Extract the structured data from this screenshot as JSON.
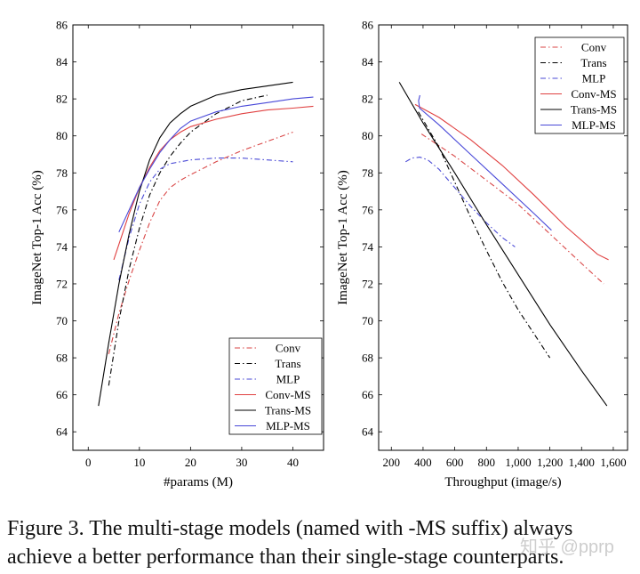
{
  "chart_data": [
    {
      "type": "line",
      "xlabel": "#params (M)",
      "ylabel": "ImageNet Top-1 Acc (%)",
      "xlim": [
        -3,
        46
      ],
      "ylim": [
        63,
        86
      ],
      "xticks": [
        0,
        10,
        20,
        30,
        40
      ],
      "yticks": [
        64,
        66,
        68,
        70,
        72,
        74,
        76,
        78,
        80,
        82,
        84,
        86
      ],
      "legend_position": "bottom-right",
      "series": [
        {
          "name": "Conv",
          "color": "#d94545",
          "dash": "6 3 1.5 3",
          "x": [
            4,
            6,
            8,
            10,
            12,
            14,
            16,
            18,
            20,
            25,
            30,
            35,
            40
          ],
          "y": [
            68.2,
            70.4,
            72.2,
            73.8,
            75.3,
            76.5,
            77.2,
            77.6,
            77.9,
            78.6,
            79.2,
            79.7,
            80.2
          ]
        },
        {
          "name": "Trans",
          "color": "#000000",
          "dash": "6 3 1.5 3",
          "x": [
            4,
            6,
            8,
            10,
            12,
            14,
            16,
            18,
            20,
            25,
            30,
            35
          ],
          "y": [
            66.5,
            70.0,
            72.8,
            75.0,
            76.8,
            78.0,
            78.9,
            79.6,
            80.2,
            81.2,
            81.9,
            82.2
          ]
        },
        {
          "name": "MLP",
          "color": "#4a4ad6",
          "dash": "6 3 1.5 3",
          "x": [
            6,
            8,
            10,
            12,
            14,
            16,
            18,
            20,
            25,
            30,
            35,
            40
          ],
          "y": [
            72.2,
            74.5,
            76.3,
            77.5,
            78.2,
            78.5,
            78.6,
            78.7,
            78.8,
            78.8,
            78.7,
            78.6
          ]
        },
        {
          "name": "Conv-MS",
          "color": "#e04040",
          "dash": "",
          "x": [
            5,
            8,
            10,
            12,
            14,
            16,
            18,
            20,
            25,
            30,
            35,
            40,
            44
          ],
          "y": [
            73.3,
            75.8,
            77.2,
            78.3,
            79.2,
            79.8,
            80.2,
            80.5,
            80.9,
            81.2,
            81.4,
            81.5,
            81.6
          ]
        },
        {
          "name": "Trans-MS",
          "color": "#000000",
          "dash": "",
          "x": [
            2,
            4,
            6,
            8,
            10,
            12,
            14,
            16,
            18,
            20,
            25,
            30,
            35,
            40
          ],
          "y": [
            65.4,
            68.8,
            72.0,
            74.7,
            77.0,
            78.7,
            79.9,
            80.7,
            81.2,
            81.6,
            82.2,
            82.5,
            82.7,
            82.9
          ]
        },
        {
          "name": "MLP-MS",
          "color": "#4848d8",
          "dash": "",
          "x": [
            6,
            8,
            10,
            12,
            14,
            16,
            18,
            20,
            25,
            30,
            35,
            40,
            44
          ],
          "y": [
            74.8,
            76.0,
            77.2,
            78.2,
            79.1,
            79.8,
            80.4,
            80.8,
            81.3,
            81.6,
            81.8,
            82.0,
            82.1
          ]
        }
      ]
    },
    {
      "type": "line",
      "xlabel": "Throughput (image/s)",
      "ylabel": "ImageNet Top-1 Acc (%)",
      "xlim": [
        120,
        1690
      ],
      "ylim": [
        63,
        86
      ],
      "xticks": [
        200,
        400,
        600,
        800,
        1000,
        1200,
        1400,
        1600
      ],
      "xtick_labels": [
        "200",
        "400",
        "600",
        "800",
        "1,000",
        "1,200",
        "1,400",
        "1,600"
      ],
      "yticks": [
        64,
        66,
        68,
        70,
        72,
        74,
        76,
        78,
        80,
        82,
        84,
        86
      ],
      "legend_position": "top-right",
      "series": [
        {
          "name": "Conv",
          "color": "#d94545",
          "dash": "6 3 1.5 3",
          "x": [
            390,
            600,
            800,
            1000,
            1200,
            1400,
            1540
          ],
          "y": [
            80.1,
            78.9,
            77.6,
            76.3,
            74.7,
            73.1,
            72.0
          ]
        },
        {
          "name": "Trans",
          "color": "#000000",
          "dash": "6 3 1.5 3",
          "x": [
            370,
            500,
            600,
            700,
            800,
            900,
            1000,
            1100,
            1200
          ],
          "y": [
            81.3,
            79.4,
            77.5,
            75.6,
            73.8,
            72.1,
            70.6,
            69.3,
            68.0
          ]
        },
        {
          "name": "MLP",
          "color": "#4a4ad6",
          "dash": "6 3 1.5 3",
          "x": [
            290,
            330,
            380,
            430,
            500,
            600,
            700,
            800,
            900,
            980
          ],
          "y": [
            78.6,
            78.8,
            78.85,
            78.7,
            78.2,
            77.2,
            76.2,
            75.3,
            74.5,
            74.0
          ]
        },
        {
          "name": "Conv-MS",
          "color": "#e04040",
          "dash": "",
          "x": [
            350,
            500,
            700,
            900,
            1100,
            1300,
            1500,
            1570
          ],
          "y": [
            81.7,
            81.0,
            79.8,
            78.4,
            76.8,
            75.1,
            73.6,
            73.3
          ]
        },
        {
          "name": "Trans-MS",
          "color": "#000000",
          "dash": "",
          "x": [
            250,
            400,
            600,
            800,
            1000,
            1200,
            1400,
            1560
          ],
          "y": [
            82.9,
            80.7,
            78.0,
            75.2,
            72.5,
            69.8,
            67.3,
            65.4
          ]
        },
        {
          "name": "MLP-MS",
          "color": "#4848d8",
          "dash": "",
          "x": [
            380,
            372,
            378,
            500,
            700,
            900,
            1100,
            1210
          ],
          "y": [
            82.2,
            81.9,
            81.5,
            80.6,
            79.0,
            77.4,
            75.8,
            74.9
          ]
        }
      ]
    }
  ],
  "caption": {
    "line1": "Figure 3. The multi-stage models (named with -MS suffix) always",
    "line2": "achieve a better performance than their single-stage counterparts."
  },
  "watermark": "知乎 @pprp"
}
